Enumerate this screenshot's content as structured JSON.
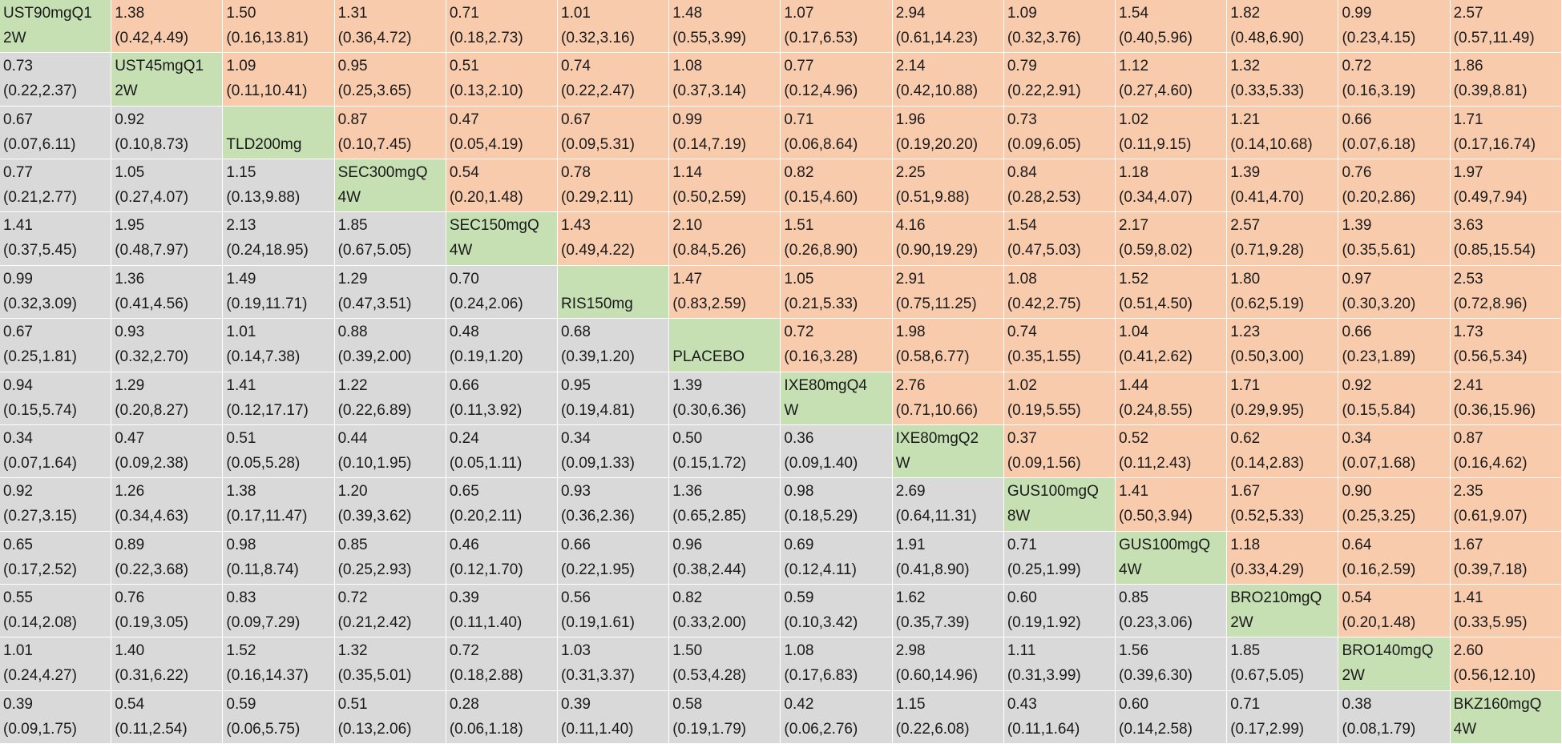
{
  "matrix": [
    [
      [
        "UST90mgQ1",
        "2W"
      ],
      [
        "1.38",
        "(0.42,4.49)"
      ],
      [
        "1.50",
        "(0.16,13.81)"
      ],
      [
        "1.31",
        "(0.36,4.72)"
      ],
      [
        "0.71",
        "(0.18,2.73)"
      ],
      [
        "1.01",
        "(0.32,3.16)"
      ],
      [
        "1.48",
        "(0.55,3.99)"
      ],
      [
        "1.07",
        "(0.17,6.53)"
      ],
      [
        "2.94",
        "(0.61,14.23)"
      ],
      [
        "1.09",
        "(0.32,3.76)"
      ],
      [
        "1.54",
        "(0.40,5.96)"
      ],
      [
        "1.82",
        "(0.48,6.90)"
      ],
      [
        "0.99",
        "(0.23,4.15)"
      ],
      [
        "2.57",
        "(0.57,11.49)"
      ]
    ],
    [
      [
        "0.73",
        "(0.22,2.37)"
      ],
      [
        "UST45mgQ1",
        "2W"
      ],
      [
        "1.09",
        "(0.11,10.41)"
      ],
      [
        "0.95",
        "(0.25,3.65)"
      ],
      [
        "0.51",
        "(0.13,2.10)"
      ],
      [
        "0.74",
        "(0.22,2.47)"
      ],
      [
        "1.08",
        "(0.37,3.14)"
      ],
      [
        "0.77",
        "(0.12,4.96)"
      ],
      [
        "2.14",
        "(0.42,10.88)"
      ],
      [
        "0.79",
        "(0.22,2.91)"
      ],
      [
        "1.12",
        "(0.27,4.60)"
      ],
      [
        "1.32",
        "(0.33,5.33)"
      ],
      [
        "0.72",
        "(0.16,3.19)"
      ],
      [
        "1.86",
        "(0.39,8.81)"
      ]
    ],
    [
      [
        "0.67",
        "(0.07,6.11)"
      ],
      [
        "0.92",
        "(0.10,8.73)"
      ],
      [
        "",
        "TLD200mg"
      ],
      [
        "0.87",
        "(0.10,7.45)"
      ],
      [
        "0.47",
        "(0.05,4.19)"
      ],
      [
        "0.67",
        "(0.09,5.31)"
      ],
      [
        "0.99",
        "(0.14,7.19)"
      ],
      [
        "0.71",
        "(0.06,8.64)"
      ],
      [
        "1.96",
        "(0.19,20.20)"
      ],
      [
        "0.73",
        "(0.09,6.05)"
      ],
      [
        "1.02",
        "(0.11,9.15)"
      ],
      [
        "1.21",
        "(0.14,10.68)"
      ],
      [
        "0.66",
        "(0.07,6.18)"
      ],
      [
        "1.71",
        "(0.17,16.74)"
      ]
    ],
    [
      [
        "0.77",
        "(0.21,2.77)"
      ],
      [
        "1.05",
        "(0.27,4.07)"
      ],
      [
        "1.15",
        "(0.13,9.88)"
      ],
      [
        "SEC300mgQ",
        "4W"
      ],
      [
        "0.54",
        "(0.20,1.48)"
      ],
      [
        "0.78",
        "(0.29,2.11)"
      ],
      [
        "1.14",
        "(0.50,2.59)"
      ],
      [
        "0.82",
        "(0.15,4.60)"
      ],
      [
        "2.25",
        "(0.51,9.88)"
      ],
      [
        "0.84",
        "(0.28,2.53)"
      ],
      [
        "1.18",
        "(0.34,4.07)"
      ],
      [
        "1.39",
        "(0.41,4.70)"
      ],
      [
        "0.76",
        "(0.20,2.86)"
      ],
      [
        "1.97",
        "(0.49,7.94)"
      ]
    ],
    [
      [
        "1.41",
        "(0.37,5.45)"
      ],
      [
        "1.95",
        "(0.48,7.97)"
      ],
      [
        "2.13",
        "(0.24,18.95)"
      ],
      [
        "1.85",
        "(0.67,5.05)"
      ],
      [
        "SEC150mgQ",
        "4W"
      ],
      [
        "1.43",
        "(0.49,4.22)"
      ],
      [
        "2.10",
        "(0.84,5.26)"
      ],
      [
        "1.51",
        "(0.26,8.90)"
      ],
      [
        "4.16",
        "(0.90,19.29)"
      ],
      [
        "1.54",
        "(0.47,5.03)"
      ],
      [
        "2.17",
        "(0.59,8.02)"
      ],
      [
        "2.57",
        "(0.71,9.28)"
      ],
      [
        "1.39",
        "(0.35,5.61)"
      ],
      [
        "3.63",
        "(0.85,15.54)"
      ]
    ],
    [
      [
        "0.99",
        "(0.32,3.09)"
      ],
      [
        "1.36",
        "(0.41,4.56)"
      ],
      [
        "1.49",
        "(0.19,11.71)"
      ],
      [
        "1.29",
        "(0.47,3.51)"
      ],
      [
        "0.70",
        "(0.24,2.06)"
      ],
      [
        "",
        "RIS150mg"
      ],
      [
        "1.47",
        "(0.83,2.59)"
      ],
      [
        "1.05",
        "(0.21,5.33)"
      ],
      [
        "2.91",
        "(0.75,11.25)"
      ],
      [
        "1.08",
        "(0.42,2.75)"
      ],
      [
        "1.52",
        "(0.51,4.50)"
      ],
      [
        "1.80",
        "(0.62,5.19)"
      ],
      [
        "0.97",
        "(0.30,3.20)"
      ],
      [
        "2.53",
        "(0.72,8.96)"
      ]
    ],
    [
      [
        "0.67",
        "(0.25,1.81)"
      ],
      [
        "0.93",
        "(0.32,2.70)"
      ],
      [
        "1.01",
        "(0.14,7.38)"
      ],
      [
        "0.88",
        "(0.39,2.00)"
      ],
      [
        "0.48",
        "(0.19,1.20)"
      ],
      [
        "0.68",
        "(0.39,1.20)"
      ],
      [
        "",
        "PLACEBO"
      ],
      [
        "0.72",
        "(0.16,3.28)"
      ],
      [
        "1.98",
        "(0.58,6.77)"
      ],
      [
        "0.74",
        "(0.35,1.55)"
      ],
      [
        "1.04",
        "(0.41,2.62)"
      ],
      [
        "1.23",
        "(0.50,3.00)"
      ],
      [
        "0.66",
        "(0.23,1.89)"
      ],
      [
        "1.73",
        "(0.56,5.34)"
      ]
    ],
    [
      [
        "0.94",
        "(0.15,5.74)"
      ],
      [
        "1.29",
        "(0.20,8.27)"
      ],
      [
        "1.41",
        "(0.12,17.17)"
      ],
      [
        "1.22",
        "(0.22,6.89)"
      ],
      [
        "0.66",
        "(0.11,3.92)"
      ],
      [
        "0.95",
        "(0.19,4.81)"
      ],
      [
        "1.39",
        "(0.30,6.36)"
      ],
      [
        "IXE80mgQ4",
        "W"
      ],
      [
        "2.76",
        "(0.71,10.66)"
      ],
      [
        "1.02",
        "(0.19,5.55)"
      ],
      [
        "1.44",
        "(0.24,8.55)"
      ],
      [
        "1.71",
        "(0.29,9.95)"
      ],
      [
        "0.92",
        "(0.15,5.84)"
      ],
      [
        "2.41",
        "(0.36,15.96)"
      ]
    ],
    [
      [
        "0.34",
        "(0.07,1.64)"
      ],
      [
        "0.47",
        "(0.09,2.38)"
      ],
      [
        "0.51",
        "(0.05,5.28)"
      ],
      [
        "0.44",
        "(0.10,1.95)"
      ],
      [
        "0.24",
        "(0.05,1.11)"
      ],
      [
        "0.34",
        "(0.09,1.33)"
      ],
      [
        "0.50",
        "(0.15,1.72)"
      ],
      [
        "0.36",
        "(0.09,1.40)"
      ],
      [
        "IXE80mgQ2",
        "W"
      ],
      [
        "0.37",
        "(0.09,1.56)"
      ],
      [
        "0.52",
        "(0.11,2.43)"
      ],
      [
        "0.62",
        "(0.14,2.83)"
      ],
      [
        "0.34",
        "(0.07,1.68)"
      ],
      [
        "0.87",
        "(0.16,4.62)"
      ]
    ],
    [
      [
        "0.92",
        "(0.27,3.15)"
      ],
      [
        "1.26",
        "(0.34,4.63)"
      ],
      [
        "1.38",
        "(0.17,11.47)"
      ],
      [
        "1.20",
        "(0.39,3.62)"
      ],
      [
        "0.65",
        "(0.20,2.11)"
      ],
      [
        "0.93",
        "(0.36,2.36)"
      ],
      [
        "1.36",
        "(0.65,2.85)"
      ],
      [
        "0.98",
        "(0.18,5.29)"
      ],
      [
        "2.69",
        "(0.64,11.31)"
      ],
      [
        "GUS100mgQ",
        "8W"
      ],
      [
        "1.41",
        "(0.50,3.94)"
      ],
      [
        "1.67",
        "(0.52,5.33)"
      ],
      [
        "0.90",
        "(0.25,3.25)"
      ],
      [
        "2.35",
        "(0.61,9.07)"
      ]
    ],
    [
      [
        "0.65",
        "(0.17,2.52)"
      ],
      [
        "0.89",
        "(0.22,3.68)"
      ],
      [
        "0.98",
        "(0.11,8.74)"
      ],
      [
        "0.85",
        "(0.25,2.93)"
      ],
      [
        "0.46",
        "(0.12,1.70)"
      ],
      [
        "0.66",
        "(0.22,1.95)"
      ],
      [
        "0.96",
        "(0.38,2.44)"
      ],
      [
        "0.69",
        "(0.12,4.11)"
      ],
      [
        "1.91",
        "(0.41,8.90)"
      ],
      [
        "0.71",
        "(0.25,1.99)"
      ],
      [
        "GUS100mgQ",
        "4W"
      ],
      [
        "1.18",
        "(0.33,4.29)"
      ],
      [
        "0.64",
        "(0.16,2.59)"
      ],
      [
        "1.67",
        "(0.39,7.18)"
      ]
    ],
    [
      [
        "0.55",
        "(0.14,2.08)"
      ],
      [
        "0.76",
        "(0.19,3.05)"
      ],
      [
        "0.83",
        "(0.09,7.29)"
      ],
      [
        "0.72",
        "(0.21,2.42)"
      ],
      [
        "0.39",
        "(0.11,1.40)"
      ],
      [
        "0.56",
        "(0.19,1.61)"
      ],
      [
        "0.82",
        "(0.33,2.00)"
      ],
      [
        "0.59",
        "(0.10,3.42)"
      ],
      [
        "1.62",
        "(0.35,7.39)"
      ],
      [
        "0.60",
        "(0.19,1.92)"
      ],
      [
        "0.85",
        "(0.23,3.06)"
      ],
      [
        "BRO210mgQ",
        "2W"
      ],
      [
        "0.54",
        "(0.20,1.48)"
      ],
      [
        "1.41",
        "(0.33,5.95)"
      ]
    ],
    [
      [
        "1.01",
        "(0.24,4.27)"
      ],
      [
        "1.40",
        "(0.31,6.22)"
      ],
      [
        "1.52",
        "(0.16,14.37)"
      ],
      [
        "1.32",
        "(0.35,5.01)"
      ],
      [
        "0.72",
        "(0.18,2.88)"
      ],
      [
        "1.03",
        "(0.31,3.37)"
      ],
      [
        "1.50",
        "(0.53,4.28)"
      ],
      [
        "1.08",
        "(0.17,6.83)"
      ],
      [
        "2.98",
        "(0.60,14.96)"
      ],
      [
        "1.11",
        "(0.31,3.99)"
      ],
      [
        "1.56",
        "(0.39,6.30)"
      ],
      [
        "1.85",
        "(0.67,5.05)"
      ],
      [
        "BRO140mgQ",
        "2W"
      ],
      [
        "2.60",
        "(0.56,12.10)"
      ]
    ],
    [
      [
        "0.39",
        "(0.09,1.75)"
      ],
      [
        "0.54",
        "(0.11,2.54)"
      ],
      [
        "0.59",
        "(0.06,5.75)"
      ],
      [
        "0.51",
        "(0.13,2.06)"
      ],
      [
        "0.28",
        "(0.06,1.18)"
      ],
      [
        "0.39",
        "(0.11,1.40)"
      ],
      [
        "0.58",
        "(0.19,1.79)"
      ],
      [
        "0.42",
        "(0.06,2.76)"
      ],
      [
        "1.15",
        "(0.22,6.08)"
      ],
      [
        "0.43",
        "(0.11,1.64)"
      ],
      [
        "0.60",
        "(0.14,2.58)"
      ],
      [
        "0.71",
        "(0.17,2.99)"
      ],
      [
        "0.38",
        "(0.08,1.79)"
      ],
      [
        "BKZ160mgQ",
        "4W"
      ]
    ]
  ],
  "colors": {
    "upper_triangle": "#f8cbad",
    "lower_triangle": "#d9d9d9",
    "diagonal": "#c6e0b4"
  }
}
